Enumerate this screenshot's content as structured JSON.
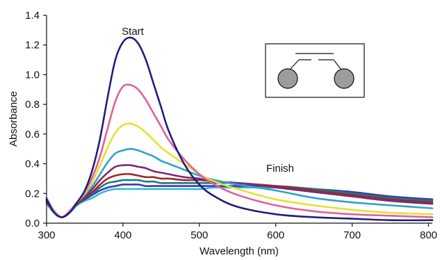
{
  "chart_data": {
    "type": "line",
    "xlabel": "Wavelength (nm)",
    "ylabel": "Absorbance",
    "xlim": [
      300,
      805
    ],
    "ylim": [
      0,
      1.4
    ],
    "x_ticks": [
      "300",
      "400",
      "500",
      "600",
      "700",
      "800"
    ],
    "y_ticks": [
      "0.0",
      "0.2",
      "0.4",
      "0.6",
      "0.8",
      "1.0",
      "1.2",
      "1.4"
    ],
    "grid": false,
    "legend": "none",
    "annotations": {
      "start": "Start",
      "finish": "Finish"
    },
    "x": [
      300,
      310,
      320,
      330,
      340,
      350,
      360,
      370,
      380,
      390,
      400,
      410,
      420,
      430,
      440,
      450,
      460,
      480,
      500,
      520,
      550,
      600,
      650,
      700,
      750,
      805
    ],
    "series": [
      {
        "color": "#1f1f7a",
        "values": [
          0.16,
          0.07,
          0.04,
          0.07,
          0.14,
          0.22,
          0.36,
          0.57,
          0.85,
          1.1,
          1.22,
          1.25,
          1.21,
          1.1,
          0.94,
          0.78,
          0.62,
          0.4,
          0.26,
          0.18,
          0.11,
          0.06,
          0.04,
          0.03,
          0.02,
          0.02
        ]
      },
      {
        "color": "#e0609a",
        "values": [
          0.17,
          0.08,
          0.04,
          0.08,
          0.14,
          0.21,
          0.31,
          0.45,
          0.64,
          0.82,
          0.92,
          0.93,
          0.9,
          0.83,
          0.74,
          0.65,
          0.56,
          0.43,
          0.33,
          0.26,
          0.19,
          0.12,
          0.08,
          0.06,
          0.05,
          0.04
        ]
      },
      {
        "color": "#e8e02e",
        "values": [
          0.17,
          0.08,
          0.04,
          0.08,
          0.14,
          0.2,
          0.28,
          0.39,
          0.51,
          0.61,
          0.66,
          0.67,
          0.65,
          0.61,
          0.56,
          0.51,
          0.47,
          0.4,
          0.33,
          0.28,
          0.23,
          0.16,
          0.12,
          0.09,
          0.07,
          0.06
        ]
      },
      {
        "color": "#2fa3c8",
        "values": [
          0.16,
          0.08,
          0.04,
          0.08,
          0.14,
          0.19,
          0.25,
          0.33,
          0.41,
          0.47,
          0.49,
          0.5,
          0.49,
          0.47,
          0.45,
          0.42,
          0.4,
          0.36,
          0.32,
          0.29,
          0.26,
          0.22,
          0.17,
          0.14,
          0.12,
          0.1
        ]
      },
      {
        "color": "#7a2a7a",
        "values": [
          0.16,
          0.08,
          0.04,
          0.08,
          0.14,
          0.18,
          0.23,
          0.29,
          0.34,
          0.38,
          0.39,
          0.39,
          0.38,
          0.37,
          0.35,
          0.34,
          0.33,
          0.31,
          0.3,
          0.28,
          0.27,
          0.24,
          0.21,
          0.18,
          0.15,
          0.13
        ]
      },
      {
        "color": "#a02828",
        "values": [
          0.15,
          0.08,
          0.04,
          0.08,
          0.13,
          0.17,
          0.21,
          0.26,
          0.3,
          0.32,
          0.33,
          0.33,
          0.32,
          0.31,
          0.31,
          0.3,
          0.3,
          0.29,
          0.29,
          0.28,
          0.27,
          0.25,
          0.22,
          0.19,
          0.16,
          0.14
        ]
      },
      {
        "color": "#1e7a78",
        "values": [
          0.15,
          0.08,
          0.04,
          0.08,
          0.13,
          0.17,
          0.2,
          0.24,
          0.27,
          0.28,
          0.29,
          0.29,
          0.29,
          0.28,
          0.28,
          0.27,
          0.27,
          0.27,
          0.27,
          0.27,
          0.27,
          0.25,
          0.23,
          0.2,
          0.17,
          0.15
        ]
      },
      {
        "color": "#3a3ab0",
        "values": [
          0.14,
          0.08,
          0.04,
          0.08,
          0.13,
          0.16,
          0.19,
          0.22,
          0.24,
          0.25,
          0.26,
          0.26,
          0.26,
          0.25,
          0.25,
          0.25,
          0.25,
          0.25,
          0.25,
          0.25,
          0.25,
          0.25,
          0.23,
          0.21,
          0.18,
          0.16
        ]
      },
      {
        "color": "#30b8e0",
        "values": [
          0.13,
          0.07,
          0.04,
          0.07,
          0.12,
          0.15,
          0.17,
          0.2,
          0.22,
          0.23,
          0.23,
          0.23,
          0.23,
          0.23,
          0.23,
          0.23,
          0.23,
          0.23,
          0.23,
          0.24,
          0.24,
          0.24,
          0.23,
          0.21,
          0.18,
          0.16
        ]
      }
    ]
  }
}
